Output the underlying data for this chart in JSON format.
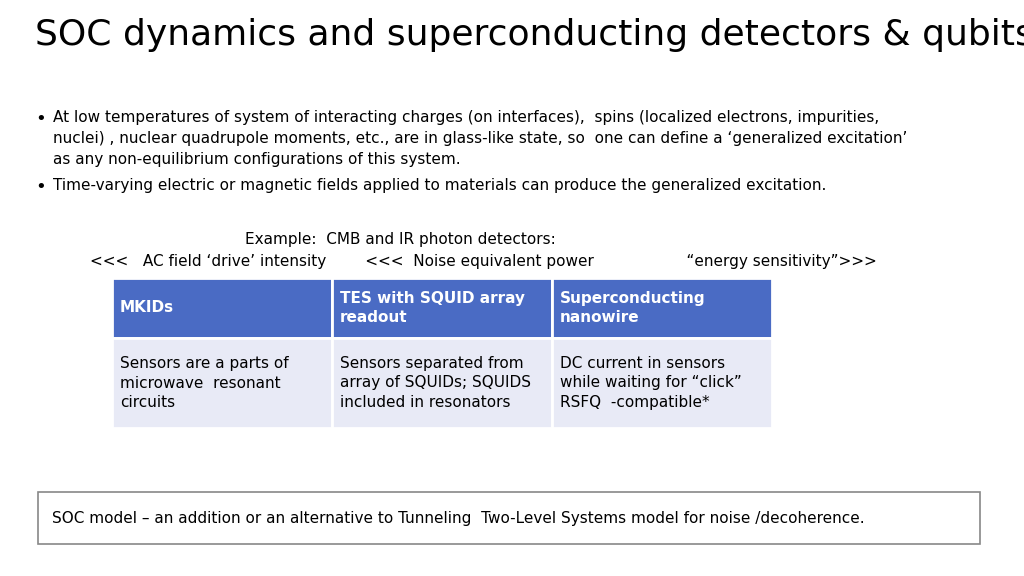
{
  "title": "SOC dynamics and superconducting detectors & qubits?",
  "title_fontsize": 26,
  "bullet1_line1": "At low temperatures of system of interacting charges (on interfaces),  spins (localized electrons, impurities,",
  "bullet1_line2": "nuclei) , nuclear quadrupole moments, etc., are in glass-like state, so  one can define a ‘generalized excitation’",
  "bullet1_line3": "as any non-equilibrium configurations of this system.",
  "bullet2": "Time-varying electric or magnetic fields applied to materials can produce the generalized excitation.",
  "example_label": "Example:  CMB and IR photon detectors:",
  "arrow_label": "<<<   AC field ‘drive’ intensity        <<<  Noise equivalent power                   “energy sensitivity”>>>",
  "table_headers": [
    "MKIDs",
    "TES with SQUID array\nreadout",
    "Superconducting\nnanowire"
  ],
  "table_rows": [
    [
      "Sensors are a parts of\nmicrowave  resonant\ncircuits",
      "Sensors separated from\narray of SQUIDs; SQUIDS\nincluded in resonators",
      "DC current in sensors\nwhile waiting for “click”\nRSFQ  -compatible*"
    ]
  ],
  "header_bg": "#4A6BC4",
  "header_text_color": "#FFFFFF",
  "row_bg": "#E8EAF6",
  "row_text_color": "#000000",
  "footer_text": "SOC model – an addition or an alternative to Tunneling  Two-Level Systems model for noise /decoherence.",
  "bg_color": "#FFFFFF",
  "text_color": "#000000",
  "bullet_fontsize": 11.0,
  "table_fontsize": 11.0,
  "footer_fontsize": 11.0
}
